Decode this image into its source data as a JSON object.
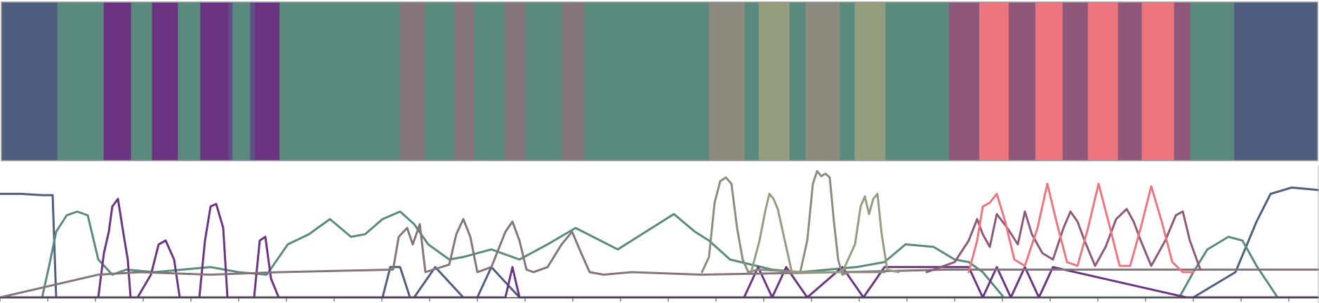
{
  "chart_data": [
    {
      "type": "heatmap",
      "colors": {
        "slate": "#4f5d7e",
        "teal": "#5a8a7e",
        "purple": "#6b3480",
        "mauve": "#837579",
        "khaki": "#8c8b7e",
        "olive": "#949e7e",
        "plum": "#8f587b",
        "coral": "#ec757e",
        "violet": "#5f5187"
      },
      "segments": [
        {
          "start": 0,
          "end": 80,
          "color": "slate"
        },
        {
          "start": 80,
          "end": 146,
          "color": "teal"
        },
        {
          "start": 146,
          "end": 185,
          "color": "purple"
        },
        {
          "start": 185,
          "end": 215,
          "color": "teal"
        },
        {
          "start": 215,
          "end": 252,
          "color": "purple"
        },
        {
          "start": 252,
          "end": 284,
          "color": "teal"
        },
        {
          "start": 284,
          "end": 324,
          "color": "purple"
        },
        {
          "start": 324,
          "end": 330,
          "color": "violet"
        },
        {
          "start": 330,
          "end": 355,
          "color": "teal"
        },
        {
          "start": 355,
          "end": 362,
          "color": "violet"
        },
        {
          "start": 362,
          "end": 397,
          "color": "purple"
        },
        {
          "start": 397,
          "end": 568,
          "color": "teal"
        },
        {
          "start": 568,
          "end": 605,
          "color": "mauve"
        },
        {
          "start": 605,
          "end": 646,
          "color": "teal"
        },
        {
          "start": 646,
          "end": 675,
          "color": "mauve"
        },
        {
          "start": 675,
          "end": 718,
          "color": "teal"
        },
        {
          "start": 718,
          "end": 748,
          "color": "mauve"
        },
        {
          "start": 748,
          "end": 800,
          "color": "teal"
        },
        {
          "start": 800,
          "end": 832,
          "color": "mauve"
        },
        {
          "start": 832,
          "end": 1010,
          "color": "teal"
        },
        {
          "start": 1010,
          "end": 1061,
          "color": "khaki"
        },
        {
          "start": 1061,
          "end": 1081,
          "color": "teal"
        },
        {
          "start": 1081,
          "end": 1125,
          "color": "olive"
        },
        {
          "start": 1125,
          "end": 1148,
          "color": "teal"
        },
        {
          "start": 1148,
          "end": 1197,
          "color": "khaki"
        },
        {
          "start": 1197,
          "end": 1218,
          "color": "teal"
        },
        {
          "start": 1218,
          "end": 1262,
          "color": "olive"
        },
        {
          "start": 1262,
          "end": 1353,
          "color": "teal"
        },
        {
          "start": 1353,
          "end": 1396,
          "color": "plum"
        },
        {
          "start": 1396,
          "end": 1438,
          "color": "coral"
        },
        {
          "start": 1438,
          "end": 1476,
          "color": "plum"
        },
        {
          "start": 1476,
          "end": 1515,
          "color": "coral"
        },
        {
          "start": 1515,
          "end": 1551,
          "color": "plum"
        },
        {
          "start": 1551,
          "end": 1594,
          "color": "coral"
        },
        {
          "start": 1594,
          "end": 1628,
          "color": "plum"
        },
        {
          "start": 1628,
          "end": 1674,
          "color": "coral"
        },
        {
          "start": 1674,
          "end": 1697,
          "color": "plum"
        },
        {
          "start": 1697,
          "end": 1760,
          "color": "teal"
        },
        {
          "start": 1760,
          "end": 1879,
          "color": "slate"
        }
      ],
      "xlim": [
        0,
        1879
      ]
    },
    {
      "type": "line",
      "xlim": [
        0,
        1879
      ],
      "ylim": [
        0,
        1
      ],
      "xticks": [
        0,
        68,
        136,
        204,
        272,
        340,
        408,
        476,
        544,
        612,
        680,
        748,
        816,
        884,
        952,
        1020,
        1088,
        1156,
        1224,
        1292,
        1360,
        1428,
        1496,
        1564,
        1632,
        1700,
        1768,
        1836
      ],
      "series": [
        {
          "key": "slate",
          "x": [
            0,
            30,
            60,
            75,
            80,
            90,
            110,
            160,
            400,
            520,
            545,
            556,
            570,
            584,
            590,
            620,
            660,
            680,
            700,
            740,
            780,
            840,
            1000,
            1160,
            1330,
            1380,
            1600,
            1700,
            1760,
            1790,
            1810,
            1840,
            1879
          ],
          "y": [
            0.82,
            0.82,
            0.81,
            0.81,
            0.0,
            0.0,
            0.0,
            0.0,
            0.0,
            0.0,
            0.0,
            0.24,
            0.24,
            0.0,
            0.0,
            0.24,
            0.0,
            0.0,
            0.24,
            0.0,
            0.0,
            0.0,
            0.0,
            0.0,
            0.0,
            0.0,
            0.0,
            0.0,
            0.2,
            0.6,
            0.82,
            0.87,
            0.85
          ]
        },
        {
          "key": "teal",
          "x": [
            0,
            60,
            70,
            80,
            95,
            110,
            125,
            140,
            160,
            180,
            220,
            260,
            300,
            340,
            380,
            410,
            440,
            470,
            500,
            520,
            545,
            570,
            590,
            610,
            640,
            660,
            700,
            740,
            780,
            820,
            880,
            920,
            960,
            990,
            1010,
            1040,
            1100,
            1140,
            1180,
            1220,
            1260,
            1290,
            1330,
            1360,
            1380,
            1400,
            1430,
            1460,
            1520,
            1560,
            1600,
            1640,
            1680,
            1700,
            1720,
            1750,
            1770,
            1790,
            1820,
            1860,
            1879
          ],
          "y": [
            0.0,
            0.0,
            0.25,
            0.52,
            0.65,
            0.68,
            0.65,
            0.3,
            0.18,
            0.22,
            0.2,
            0.22,
            0.24,
            0.2,
            0.18,
            0.42,
            0.5,
            0.62,
            0.48,
            0.5,
            0.62,
            0.68,
            0.58,
            0.42,
            0.3,
            0.32,
            0.38,
            0.3,
            0.42,
            0.55,
            0.38,
            0.52,
            0.66,
            0.52,
            0.45,
            0.3,
            0.22,
            0.2,
            0.22,
            0.24,
            0.28,
            0.42,
            0.4,
            0.3,
            0.28,
            0.2,
            0.0,
            0.0,
            0.0,
            0.0,
            0.0,
            0.0,
            0.0,
            0.2,
            0.38,
            0.48,
            0.45,
            0.25,
            0.0,
            0.0,
            0.0
          ]
        },
        {
          "key": "purple",
          "x": [
            0,
            140,
            148,
            155,
            160,
            168,
            176,
            182,
            186,
            196,
            215,
            226,
            236,
            248,
            256,
            284,
            292,
            300,
            308,
            318,
            324,
            362,
            370,
            378,
            386,
            397,
            720,
            730,
            740,
            750,
            830,
            1060,
            1080,
            1100,
            1120,
            1150,
            1200,
            1230,
            1260,
            1330,
            1380,
            1400,
            1420,
            1440,
            1460,
            1480,
            1500,
            1690,
            1879
          ],
          "y": [
            0.0,
            0.0,
            0.35,
            0.52,
            0.72,
            0.78,
            0.5,
            0.3,
            0.0,
            0.0,
            0.18,
            0.42,
            0.45,
            0.3,
            0.0,
            0.0,
            0.45,
            0.72,
            0.74,
            0.55,
            0.0,
            0.0,
            0.45,
            0.48,
            0.15,
            0.0,
            0.0,
            0.24,
            0.0,
            0.0,
            0.0,
            0.0,
            0.24,
            0.0,
            0.24,
            0.0,
            0.24,
            0.0,
            0.24,
            0.24,
            0.24,
            0.0,
            0.24,
            0.0,
            0.24,
            0.0,
            0.24,
            0.0,
            0.0
          ]
        },
        {
          "key": "mauve",
          "x": [
            0,
            140,
            200,
            300,
            400,
            560,
            568,
            580,
            588,
            598,
            606,
            640,
            650,
            660,
            670,
            680,
            700,
            720,
            730,
            740,
            750,
            760,
            780,
            800,
            815,
            828,
            840,
            860,
            900,
            1000,
            1200,
            1350,
            1879
          ],
          "y": [
            0.0,
            0.18,
            0.2,
            0.18,
            0.2,
            0.22,
            0.48,
            0.55,
            0.42,
            0.58,
            0.2,
            0.26,
            0.5,
            0.62,
            0.48,
            0.2,
            0.24,
            0.52,
            0.6,
            0.45,
            0.22,
            0.2,
            0.24,
            0.42,
            0.52,
            0.35,
            0.2,
            0.18,
            0.2,
            0.18,
            0.2,
            0.22,
            0.22
          ]
        },
        {
          "key": "khaki",
          "x": [
            1000,
            1010,
            1018,
            1026,
            1034,
            1042,
            1050,
            1058,
            1066,
            1080,
            1140,
            1150,
            1158,
            1164,
            1170,
            1176,
            1182,
            1188,
            1194,
            1200,
            1210,
            1260
          ],
          "y": [
            0.2,
            0.32,
            0.75,
            0.92,
            0.95,
            0.9,
            0.55,
            0.3,
            0.2,
            0.22,
            0.2,
            0.45,
            0.9,
            1.0,
            0.96,
            0.98,
            0.95,
            0.6,
            0.3,
            0.18,
            0.2,
            0.2
          ]
        },
        {
          "key": "olive",
          "x": [
            1070,
            1082,
            1090,
            1096,
            1102,
            1108,
            1114,
            1120,
            1128,
            1200,
            1218,
            1226,
            1232,
            1238,
            1244,
            1250,
            1256,
            1264,
            1280
          ],
          "y": [
            0.2,
            0.45,
            0.68,
            0.82,
            0.78,
            0.7,
            0.55,
            0.4,
            0.2,
            0.2,
            0.42,
            0.72,
            0.8,
            0.66,
            0.78,
            0.82,
            0.5,
            0.22,
            0.2
          ]
        },
        {
          "key": "plum",
          "x": [
            1320,
            1360,
            1380,
            1392,
            1400,
            1410,
            1420,
            1435,
            1450,
            1460,
            1470,
            1485,
            1500,
            1515,
            1525,
            1535,
            1545,
            1560,
            1575,
            1590,
            1605,
            1615,
            1625,
            1640,
            1660,
            1675,
            1685,
            1695,
            1710
          ],
          "y": [
            0.2,
            0.28,
            0.45,
            0.62,
            0.5,
            0.4,
            0.66,
            0.55,
            0.42,
            0.68,
            0.5,
            0.35,
            0.3,
            0.55,
            0.68,
            0.6,
            0.45,
            0.25,
            0.4,
            0.62,
            0.7,
            0.6,
            0.45,
            0.25,
            0.45,
            0.65,
            0.68,
            0.45,
            0.22
          ]
        },
        {
          "key": "coral",
          "x": [
            1380,
            1392,
            1400,
            1410,
            1420,
            1432,
            1445,
            1460,
            1478,
            1492,
            1505,
            1520,
            1535,
            1550,
            1565,
            1580,
            1595,
            1610,
            1625,
            1640,
            1655,
            1670,
            1685,
            1700
          ],
          "y": [
            0.2,
            0.45,
            0.72,
            0.75,
            0.82,
            0.6,
            0.3,
            0.25,
            0.55,
            0.9,
            0.6,
            0.28,
            0.25,
            0.55,
            0.9,
            0.58,
            0.25,
            0.25,
            0.55,
            0.88,
            0.6,
            0.28,
            0.2,
            0.2
          ]
        }
      ]
    }
  ]
}
